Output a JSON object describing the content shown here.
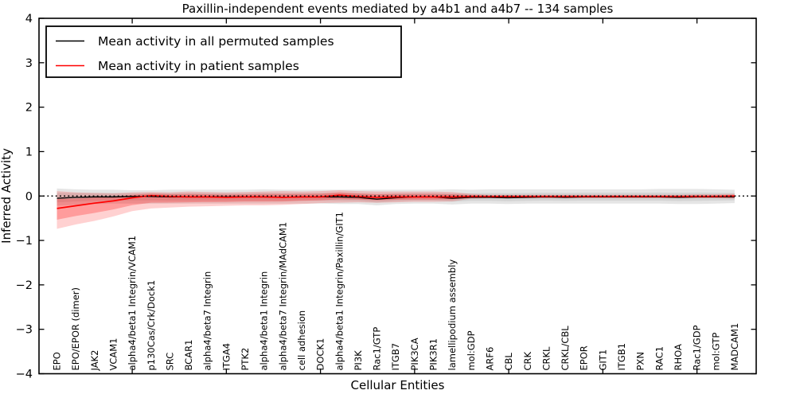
{
  "chart_data": {
    "type": "line",
    "title": "Paxillin-independent events mediated by a4b1 and a4b7 -- 134 samples",
    "xlabel": "Cellular Entities",
    "ylabel": "Inferred Activity",
    "ylim": [
      -4,
      4
    ],
    "yticks": [
      4,
      3,
      2,
      1,
      0,
      -1,
      -2,
      -3,
      -4
    ],
    "x_major_ticks": [
      5,
      10,
      15,
      20,
      25,
      30,
      35
    ],
    "grid": false,
    "legend_position": "upper left",
    "zero_reference_line": 0,
    "categories": [
      "EPO",
      "EPO/EPOR (dimer)",
      "JAK2",
      "VCAM1",
      "alpha4/beta1 Integrin/VCAM1",
      "p130Cas/Crk/Dock1",
      "SRC",
      "BCAR1",
      "alpha4/beta7 Integrin",
      "ITGA4",
      "PTK2",
      "alpha4/beta1 Integrin",
      "alpha4/beta7 Integrin/MAdCAM1",
      "cell adhesion",
      "DOCK1",
      "alpha4/beta1 Integrin/Paxillin/GIT1",
      "PI3K",
      "Rac1/GTP",
      "ITGB7",
      "PIK3CA",
      "PIK3R1",
      "lamellipodium assembly",
      "mol:GDP",
      "ARF6",
      "CBL",
      "CRK",
      "CRKL",
      "CRKL/CBL",
      "EPOR",
      "GIT1",
      "ITGB1",
      "PXN",
      "RAC1",
      "RHOA",
      "Rac1/GDP",
      "mol:GTP",
      "MADCAM1"
    ],
    "series": [
      {
        "name": "Mean activity in all permuted samples",
        "color": "#000000",
        "values": [
          -0.05,
          -0.03,
          -0.02,
          -0.02,
          -0.01,
          -0.01,
          -0.02,
          -0.02,
          -0.02,
          -0.02,
          -0.02,
          -0.02,
          -0.03,
          -0.02,
          -0.02,
          -0.02,
          -0.03,
          -0.07,
          -0.04,
          -0.02,
          -0.02,
          -0.05,
          -0.03,
          -0.03,
          -0.04,
          -0.03,
          -0.02,
          -0.03,
          -0.02,
          -0.02,
          -0.02,
          -0.02,
          -0.02,
          -0.03,
          -0.02,
          -0.02,
          -0.02
        ]
      },
      {
        "name": "Mean activity in patient samples",
        "color": "#ff0000",
        "values": [
          -0.28,
          -0.22,
          -0.16,
          -0.11,
          -0.04,
          0.01,
          -0.01,
          -0.02,
          -0.02,
          -0.03,
          -0.02,
          -0.02,
          -0.03,
          -0.02,
          -0.02,
          0.02,
          -0.01,
          -0.03,
          -0.02,
          -0.02,
          -0.02,
          -0.02,
          -0.01,
          -0.01,
          -0.01,
          -0.01,
          -0.01,
          -0.01,
          -0.01,
          -0.01,
          -0.01,
          -0.01,
          -0.01,
          -0.01,
          -0.01,
          -0.01,
          0.0
        ]
      }
    ],
    "bands": [
      {
        "name": "permuted-samples-spread",
        "series_index": 0,
        "color": "#000000",
        "upper": [
          0.17,
          0.15,
          0.14,
          0.14,
          0.13,
          0.13,
          0.14,
          0.14,
          0.14,
          0.14,
          0.14,
          0.15,
          0.14,
          0.14,
          0.14,
          0.14,
          0.14,
          0.14,
          0.14,
          0.14,
          0.14,
          0.15,
          0.14,
          0.15,
          0.15,
          0.15,
          0.15,
          0.15,
          0.15,
          0.15,
          0.15,
          0.15,
          0.16,
          0.16,
          0.16,
          0.15,
          0.14
        ],
        "lower": [
          -0.22,
          -0.2,
          -0.18,
          -0.17,
          -0.17,
          -0.17,
          -0.17,
          -0.17,
          -0.17,
          -0.17,
          -0.17,
          -0.17,
          -0.17,
          -0.17,
          -0.17,
          -0.18,
          -0.18,
          -0.21,
          -0.18,
          -0.17,
          -0.17,
          -0.19,
          -0.17,
          -0.17,
          -0.18,
          -0.17,
          -0.17,
          -0.17,
          -0.17,
          -0.17,
          -0.17,
          -0.17,
          -0.17,
          -0.18,
          -0.18,
          -0.17,
          -0.16
        ]
      },
      {
        "name": "patient-samples-spread",
        "series_index": 1,
        "color": "#ff0000",
        "upper": [
          0.11,
          0.08,
          0.07,
          0.06,
          0.08,
          0.09,
          0.08,
          0.1,
          0.09,
          0.08,
          0.09,
          0.1,
          0.11,
          0.1,
          0.11,
          0.13,
          0.11,
          0.1,
          0.1,
          0.1,
          0.1,
          0.09,
          0.05,
          0.03,
          0.03,
          0.03,
          0.03,
          0.03,
          0.03,
          0.03,
          0.03,
          0.03,
          0.03,
          0.03,
          0.04,
          0.04,
          0.05
        ],
        "lower": [
          -0.74,
          -0.64,
          -0.56,
          -0.46,
          -0.34,
          -0.28,
          -0.26,
          -0.24,
          -0.23,
          -0.22,
          -0.21,
          -0.21,
          -0.2,
          -0.18,
          -0.16,
          -0.15,
          -0.14,
          -0.15,
          -0.14,
          -0.13,
          -0.13,
          -0.12,
          -0.06,
          -0.05,
          -0.05,
          -0.05,
          -0.05,
          -0.05,
          -0.05,
          -0.05,
          -0.05,
          -0.05,
          -0.05,
          -0.05,
          -0.05,
          -0.05,
          -0.06
        ]
      }
    ]
  },
  "legend": {
    "entries": [
      {
        "label": "Mean activity in all permuted samples",
        "color": "#000000"
      },
      {
        "label": "Mean activity in patient samples",
        "color": "#ff0000"
      }
    ]
  }
}
